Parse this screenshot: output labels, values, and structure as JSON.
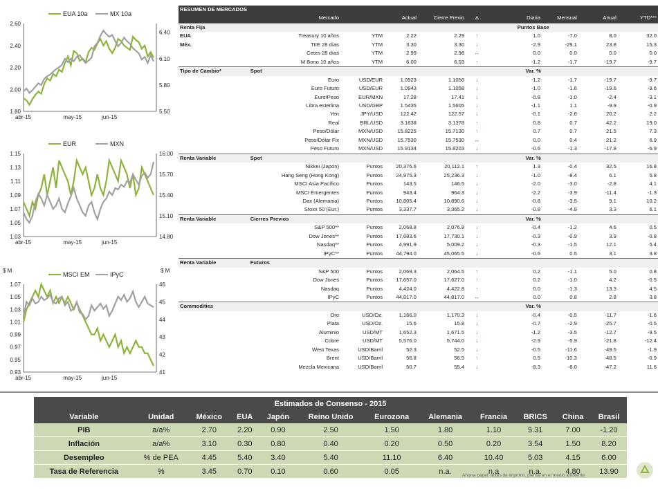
{
  "charts": [
    {
      "id": "chart1",
      "series": [
        {
          "name": "EUA 10a",
          "color": "#8db33a",
          "axis": "left",
          "values": [
            1.92,
            1.9,
            1.86,
            1.91,
            1.95,
            1.98,
            1.96,
            2.05,
            2.1,
            2.08,
            2.14,
            2.12,
            2.18,
            2.16,
            2.24,
            2.3,
            2.22,
            2.35,
            2.33,
            2.26,
            2.28,
            2.25,
            2.34,
            2.38,
            2.36,
            2.42,
            2.46,
            2.4,
            2.44,
            2.37,
            2.33,
            2.38,
            2.46,
            2.44,
            2.4,
            2.38,
            2.36,
            2.48,
            2.45,
            2.43,
            2.37,
            2.4,
            2.3,
            2.34,
            2.29
          ]
        },
        {
          "name": "MX 10a",
          "color": "#a0a0a0",
          "axis": "right",
          "values": [
            5.73,
            5.76,
            5.71,
            5.74,
            5.78,
            5.82,
            5.8,
            5.87,
            5.9,
            5.92,
            5.95,
            5.98,
            6.0,
            6.03,
            6.1,
            6.06,
            6.1,
            6.07,
            6.12,
            6.14,
            6.09,
            6.05,
            6.08,
            6.11,
            6.24,
            6.28,
            6.36,
            6.42,
            6.38,
            6.35,
            6.37,
            6.3,
            6.24,
            6.28,
            6.34,
            6.3,
            6.27,
            6.22,
            6.19,
            6.16,
            6.09,
            6.12,
            6.05,
            6.14,
            6.07
          ]
        }
      ],
      "left_ticks": [
        "2.60",
        "2.40",
        "2.20",
        "2.00",
        "1.80"
      ],
      "left_range": [
        1.8,
        2.6
      ],
      "right_ticks": [
        "6.40",
        "6.10",
        "5.80",
        "5.50"
      ],
      "right_range": [
        5.5,
        6.5
      ],
      "x_ticks": [
        "abr-15",
        "may-15",
        "jun-15"
      ]
    },
    {
      "id": "chart2",
      "series": [
        {
          "name": "EUR",
          "color": "#8db33a",
          "axis": "left",
          "values": [
            1.08,
            1.07,
            1.06,
            1.08,
            1.07,
            1.09,
            1.1,
            1.12,
            1.09,
            1.11,
            1.13,
            1.1,
            1.14,
            1.13,
            1.12,
            1.11,
            1.09,
            1.11,
            1.14,
            1.13,
            1.12,
            1.13,
            1.11,
            1.09,
            1.1,
            1.12,
            1.1,
            1.09,
            1.11,
            1.14,
            1.13,
            1.12,
            1.11,
            1.14,
            1.13,
            1.12,
            1.1,
            1.12,
            1.09,
            1.1,
            1.13,
            1.12,
            1.11,
            1.1,
            1.09
          ]
        },
        {
          "name": "MXN",
          "color": "#a0a0a0",
          "axis": "right",
          "values": [
            15.15,
            15.05,
            15.0,
            15.1,
            15.3,
            15.42,
            15.35,
            15.25,
            15.4,
            15.3,
            15.2,
            15.25,
            15.35,
            15.2,
            15.15,
            15.28,
            15.38,
            15.5,
            15.35,
            15.25,
            15.15,
            15.1,
            15.25,
            15.3,
            15.15,
            15.05,
            15.2,
            15.3,
            15.35,
            15.45,
            15.4,
            15.5,
            15.48,
            15.55,
            15.52,
            15.6,
            15.58,
            15.7,
            15.62,
            15.55,
            15.68,
            15.72,
            15.65,
            15.7,
            15.88
          ]
        }
      ],
      "left_ticks": [
        "1.15",
        "1.13",
        "1.11",
        "1.09",
        "1.07",
        "1.05",
        "1.03"
      ],
      "left_range": [
        1.03,
        1.15
      ],
      "right_ticks": [
        "16.00",
        "15.70",
        "15.40",
        "15.10",
        "14.80"
      ],
      "right_range": [
        14.8,
        16.0
      ],
      "x_ticks": [
        "abr-15",
        "may-15",
        "jun-15"
      ]
    },
    {
      "id": "chart3",
      "series": [
        {
          "name": "MSCI EM",
          "color": "#8db33a",
          "axis": "left",
          "values": [
            1.01,
            1.03,
            1.04,
            1.05,
            1.06,
            1.05,
            1.07,
            1.06,
            1.05,
            1.06,
            1.04,
            1.05,
            1.04,
            1.05,
            1.04,
            1.05,
            1.04,
            1.03,
            1.04,
            1.03,
            1.02,
            1.01,
            1.0,
            0.99,
            0.99,
            1.0,
            0.98,
            0.99,
            0.98,
            0.97,
            0.98,
            0.99,
            0.97,
            0.98,
            0.96,
            0.97,
            0.96,
            0.97,
            0.98,
            0.97,
            0.97,
            0.96,
            0.96,
            0.95,
            0.94
          ]
        },
        {
          "name": "IPyC",
          "color": "#a0a0a0",
          "axis": "right",
          "values": [
            44.2,
            45.0,
            44.8,
            45.2,
            44.9,
            45.0,
            45.3,
            45.1,
            45.2,
            45.4,
            45.0,
            44.9,
            45.2,
            45.3,
            44.8,
            45.0,
            44.5,
            44.6,
            45.0,
            44.4,
            44.3,
            44.0,
            44.2,
            44.8,
            44.5,
            44.7,
            44.9,
            44.6,
            44.8,
            44.2,
            44.5,
            44.9,
            45.3,
            45.1,
            45.4,
            45.0,
            45.2,
            45.6,
            45.0,
            44.7,
            45.0,
            45.3,
            44.9,
            44.8,
            44.7
          ]
        }
      ],
      "left_ticks": [
        "1.07",
        "1.05",
        "1.03",
        "1.01",
        "0.99",
        "0.97",
        "0.95",
        "0.93"
      ],
      "left_range": [
        0.93,
        1.07
      ],
      "right_ticks": [
        "46",
        "45",
        "44",
        "43",
        "42",
        "41"
      ],
      "right_range": [
        41,
        46
      ],
      "axis_mark_left": "$ M",
      "axis_mark_right": "$ M",
      "x_ticks": [
        "abr-15",
        "may-15",
        "jun-15"
      ]
    }
  ],
  "market": {
    "title": "RESUMEN DE MERCADOS",
    "columns": [
      "Mercado",
      "",
      "Actual",
      "Cierre Previo",
      "Δ",
      "Diaria",
      "Mensual",
      "Anual",
      "YTD***"
    ],
    "sections": [
      {
        "name": "Renta Fija",
        "sub": "",
        "unit_header": "Puntos Base",
        "rows": [
          {
            "label": "EUA",
            "name": "Treasury 10 años",
            "unit": "YTM",
            "actual": "2.22",
            "prev": "2.29",
            "dir": "up",
            "d": "1.0",
            "m": "-7.0",
            "a": "8.0",
            "ytd": "32.0"
          },
          {
            "label": "Méx.",
            "name": "TIIE 28 días",
            "unit": "YTM",
            "actual": "3.30",
            "prev": "3.30",
            "dir": "dn",
            "d": "-2.9",
            "m": "-29.1",
            "a": "23.8",
            "ytd": "15.3"
          },
          {
            "label": "",
            "name": "Cetes 28 días",
            "unit": "YTM",
            "actual": "2.99",
            "prev": "2.98",
            "dir": "eq",
            "d": "0.0",
            "m": "0.0",
            "a": "0.0",
            "ytd": "0.0"
          },
          {
            "label": "",
            "name": "M Bono 10 años",
            "unit": "YTM",
            "actual": "6.00",
            "prev": "6.03",
            "dir": "up",
            "d": "-1.2",
            "m": "-1.7",
            "a": "-19.7",
            "ytd": "-9.7"
          }
        ]
      },
      {
        "name": "Tipo de Cambio*",
        "sub": "Spot",
        "unit_header": "Var. %",
        "rows": [
          {
            "label": "",
            "name": "Euro",
            "unit": "USD/EUR",
            "actual": "1.0923",
            "prev": "1.1056",
            "dir": "dn",
            "d": "-1.2",
            "m": "-1.7",
            "a": "-19.7",
            "ytd": "-9.7"
          },
          {
            "label": "",
            "name": "Euro Futuro",
            "unit": "USD/EUR",
            "actual": "1.0943",
            "prev": "1.1058",
            "dir": "dn",
            "d": "-1.0",
            "m": "-1.6",
            "a": "-19.6",
            "ytd": "-9.6"
          },
          {
            "label": "",
            "name": "Euro/Peso",
            "unit": "EUR/MXN",
            "actual": "17.28",
            "prev": "17.41",
            "dir": "dn",
            "d": "-0.8",
            "m": "-1.0",
            "a": "-2.4",
            "ytd": "-3.1"
          },
          {
            "label": "",
            "name": "Libra esterlina",
            "unit": "USD/GBP",
            "actual": "1.5435",
            "prev": "1.5605",
            "dir": "dn",
            "d": "-1.1",
            "m": "1.1",
            "a": "-9.9",
            "ytd": "-0.9"
          },
          {
            "label": "",
            "name": "Yen",
            "unit": "JPY/USD",
            "actual": "122.42",
            "prev": "122.57",
            "dir": "dn",
            "d": "-0.1",
            "m": "-2.6",
            "a": "20.2",
            "ytd": "2.2"
          },
          {
            "label": "",
            "name": "Real",
            "unit": "BRL/USD",
            "actual": "3.1638",
            "prev": "3.1378",
            "dir": "up",
            "d": "0.8",
            "m": "0.7",
            "a": "42.2",
            "ytd": "19.0"
          },
          {
            "label": "",
            "name": "Peso/Dólar",
            "unit": "MXN/USD",
            "actual": "15.8225",
            "prev": "15.7130",
            "dir": "up",
            "d": "0.7",
            "m": "0.7",
            "a": "21.5",
            "ytd": "7.3"
          },
          {
            "label": "",
            "name": "Peso/Dólar Fix",
            "unit": "MXN/USD",
            "actual": "15.7530",
            "prev": "15.7530",
            "dir": "eq",
            "d": "0.0",
            "m": "0.4",
            "a": "21.2",
            "ytd": "6.9"
          },
          {
            "label": "",
            "name": "Peso Futuro",
            "unit": "MXN/USD",
            "actual": "15.9134",
            "prev": "15.8203",
            "dir": "dn",
            "d": "-0.6",
            "m": "-1.3",
            "a": "-17.8",
            "ytd": "-6.9"
          }
        ]
      },
      {
        "name": "Renta Variable",
        "sub": "Spot",
        "unit_header": "Var. %",
        "rows": [
          {
            "label": "",
            "name": "Nikkei (Japón)",
            "unit": "Puntos",
            "actual": "20,376.6",
            "prev": "20,112.1",
            "dir": "up",
            "d": "1.3",
            "m": "-0.4",
            "a": "32.5",
            "ytd": "16.8"
          },
          {
            "label": "",
            "name": "Hang Seng (Hong Kong)",
            "unit": "Puntos",
            "actual": "24,975.3",
            "prev": "25,236.3",
            "dir": "dn",
            "d": "-1.0",
            "m": "-8.4",
            "a": "6.1",
            "ytd": "5.8"
          },
          {
            "label": "",
            "name": "MSCI Asia Pacífico",
            "unit": "Puntos",
            "actual": "143.5",
            "prev": "146.5",
            "dir": "dn",
            "d": "-2.0",
            "m": "-3.0",
            "a": "-2.8",
            "ytd": "4.1"
          },
          {
            "label": "",
            "name": "MSCI Emergentes",
            "unit": "Puntos",
            "actual": "943.4",
            "prev": "964.3",
            "dir": "dn",
            "d": "-2.2",
            "m": "-3.9",
            "a": "-11.4",
            "ytd": "-1.3"
          },
          {
            "label": "",
            "name": "Dax (Alemania)",
            "unit": "Puntos",
            "actual": "10,805.4",
            "prev": "10,890.6",
            "dir": "dn",
            "d": "-0.8",
            "m": "-3.5",
            "a": "9.1",
            "ytd": "10.2"
          },
          {
            "label": "",
            "name": "Stoxx 50 (Eur.)",
            "unit": "Puntos",
            "actual": "3,337.7",
            "prev": "3,365.2",
            "dir": "dn",
            "d": "-0.8",
            "m": "-4.9",
            "a": "3.3",
            "ytd": "6.1"
          }
        ]
      },
      {
        "name": "Renta Variable",
        "sub": "Cierres Previos",
        "unit_header": "Var. %",
        "rows": [
          {
            "label": "",
            "name": "S&P 500**",
            "unit": "Puntos",
            "actual": "2,068.8",
            "prev": "2,076.8",
            "dir": "dn",
            "d": "-0.4",
            "m": "-1.2",
            "a": "4.6",
            "ytd": "0.5"
          },
          {
            "label": "",
            "name": "Dow Jones**",
            "unit": "Puntos",
            "actual": "17,683.6",
            "prev": "17,730.1",
            "dir": "dn",
            "d": "-0.3",
            "m": "-0.9",
            "a": "3.9",
            "ytd": "-0.8"
          },
          {
            "label": "",
            "name": "Nasdaq**",
            "unit": "Puntos",
            "actual": "4,991.9",
            "prev": "5,009.2",
            "dir": "dn",
            "d": "-0.3",
            "m": "-1.5",
            "a": "12.1",
            "ytd": "5.4"
          },
          {
            "label": "",
            "name": "IPyC**",
            "unit": "Puntos",
            "actual": "44,794.0",
            "prev": "45,065.5",
            "dir": "dn",
            "d": "-0.6",
            "m": "0.5",
            "a": "3.1",
            "ytd": "3.8"
          }
        ]
      },
      {
        "name": "Renta Variable",
        "sub": "Futuros",
        "unit_header": "",
        "rows": [
          {
            "label": "",
            "name": "S&P 500",
            "unit": "Puntos",
            "actual": "2,069.3",
            "prev": "2,064.5",
            "dir": "up",
            "d": "0.2",
            "m": "-1.1",
            "a": "5.0",
            "ytd": "0.8"
          },
          {
            "label": "",
            "name": "Dow Jones",
            "unit": "Puntos",
            "actual": "17,657.0",
            "prev": "17,627.0",
            "dir": "up",
            "d": "0.2",
            "m": "-1.0",
            "a": "4.2",
            "ytd": "-0.5"
          },
          {
            "label": "",
            "name": "Nasdaq",
            "unit": "Puntos",
            "actual": "4,424.0",
            "prev": "4,422.8",
            "dir": "up",
            "d": "0.0",
            "m": "-1.3",
            "a": "13.3",
            "ytd": "4.5"
          },
          {
            "label": "",
            "name": "IPyC",
            "unit": "Puntos",
            "actual": "44,817.0",
            "prev": "44,817.0",
            "dir": "eq",
            "d": "0.0",
            "m": "0.8",
            "a": "2.8",
            "ytd": "3.8"
          }
        ]
      },
      {
        "name": "Commodities",
        "sub": "",
        "unit_header": "Var. %",
        "rows": [
          {
            "label": "",
            "name": "Oro",
            "unit": "USD/Oz.",
            "actual": "1,166.0",
            "prev": "1,170.3",
            "dir": "dn",
            "d": "-0.4",
            "m": "-0.5",
            "a": "-11.7",
            "ytd": "-1.6"
          },
          {
            "label": "",
            "name": "Plata",
            "unit": "USD/Oz.",
            "actual": "15.6",
            "prev": "15.8",
            "dir": "dn",
            "d": "-0.7",
            "m": "-2.9",
            "a": "-25.7",
            "ytd": "-0.5"
          },
          {
            "label": "",
            "name": "Aluminio",
            "unit": "USD/MT",
            "actual": "1,652.3",
            "prev": "1,671.5",
            "dir": "dn",
            "d": "-1.2",
            "m": "-3.5",
            "a": "-12.7",
            "ytd": "-9.5"
          },
          {
            "label": "",
            "name": "Cobre",
            "unit": "USD/MT",
            "actual": "5,576.0",
            "prev": "5,744.0",
            "dir": "dn",
            "d": "-2.9",
            "m": "-5.9",
            "a": "-21.8",
            "ytd": "-12.4"
          },
          {
            "label": "",
            "name": "West Texas",
            "unit": "USD/Barril",
            "actual": "52.3",
            "prev": "52.5",
            "dir": "dn",
            "d": "-0.5",
            "m": "-11.6",
            "a": "-49.5",
            "ytd": "-1.9"
          },
          {
            "label": "",
            "name": "Brent",
            "unit": "USD/Barril",
            "actual": "56.8",
            "prev": "56.5",
            "dir": "up",
            "d": "0.5",
            "m": "-10.3",
            "a": "-48.5",
            "ytd": "-0.9"
          },
          {
            "label": "",
            "name": "Mezcla Mexicana",
            "unit": "USD/Barril",
            "actual": "50.7",
            "prev": "55.4",
            "dir": "dn",
            "d": "-8.3",
            "m": "-8.0",
            "a": "-47.2",
            "ytd": "11.6"
          }
        ]
      }
    ]
  },
  "consensus": {
    "title": "Estimados de Consenso - 2015",
    "headers": [
      "Variable",
      "Unidad",
      "México",
      "EUA",
      "Japón",
      "Reino Unido",
      "Eurozona",
      "Alemania",
      "Francia",
      "BRICS",
      "China",
      "Brasil"
    ],
    "rows": [
      [
        "PIB",
        "a/a%",
        "2.70",
        "2.20",
        "0.90",
        "2.50",
        "1.50",
        "1.80",
        "1.10",
        "5.31",
        "7.00",
        "-1.20"
      ],
      [
        "Inflación",
        "a/a%",
        "3.10",
        "0.30",
        "0.80",
        "0.40",
        "0.20",
        "0.50",
        "0.20",
        "3.54",
        "1.50",
        "8.20"
      ],
      [
        "Desempleo",
        "% de PEA",
        "4.45",
        "5.40",
        "3.40",
        "5.40",
        "11.10",
        "6.40",
        "10.40",
        "5.03",
        "4.15",
        "6.00"
      ],
      [
        "Tasa de Referencia",
        "%",
        "3.45",
        "0.70",
        "0.10",
        "0.60",
        "0.05",
        "n.a.",
        "n.a",
        "n.a.",
        "4.80",
        "13.90"
      ]
    ]
  },
  "footnote": "Ahorra papel: antes de imprimir, piensa en el medio ambiente"
}
